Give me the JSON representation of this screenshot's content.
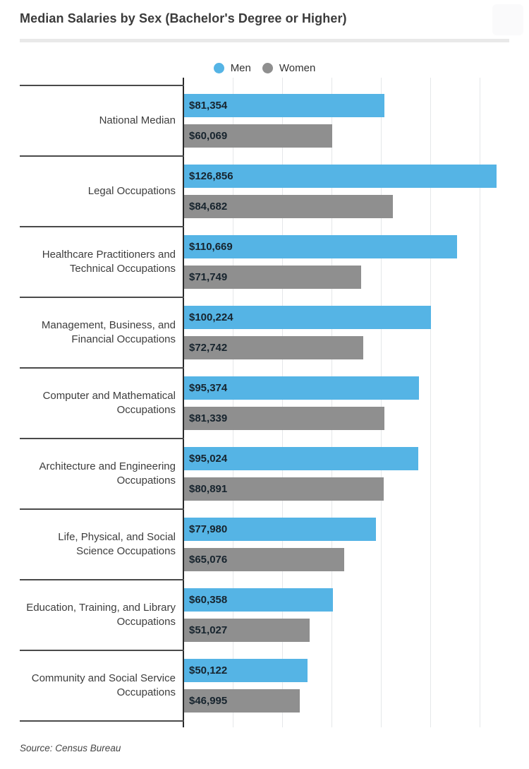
{
  "page": {
    "title": "Median Salaries by Sex (Bachelor's Degree or Higher)",
    "source": "Source: Census Bureau"
  },
  "legend": {
    "men_label": "Men",
    "women_label": "Women"
  },
  "colors": {
    "men": "#55b4e5",
    "women": "#8f8f8f",
    "value_text": "#17242e",
    "axis": "#2a2a2a",
    "row_line": "#4a4a4a",
    "grid": "#e5e7e9",
    "title_text": "#3b3b3b"
  },
  "chart_data": {
    "type": "bar",
    "orientation": "horizontal",
    "title": "Median Salaries by Sex (Bachelor's Degree or Higher)",
    "xlabel": "",
    "ylabel": "",
    "xlim": [
      0,
      140000
    ],
    "gridline_step": 20000,
    "grid": true,
    "legend_position": "top",
    "source": "Source: Census Bureau",
    "categories": [
      "National Median",
      "Legal Occupations",
      "Healthcare Practitioners and Technical Occupations",
      "Management, Business, and Financial Occupations",
      "Computer and Mathematical Occupations",
      "Architecture and Engineering Occupations",
      "Life, Physical, and Social Science Occupations",
      "Education, Training, and Library Occupations",
      "Community and Social Service Occupations"
    ],
    "series": [
      {
        "name": "Men",
        "color": "#55b4e5",
        "values": [
          81354,
          126856,
          110669,
          100224,
          95374,
          95024,
          77980,
          60358,
          50122
        ],
        "labels": [
          "$81,354",
          "$126,856",
          "$110,669",
          "$100,224",
          "$95,374",
          "$95,024",
          "$77,980",
          "$60,358",
          "$50,122"
        ]
      },
      {
        "name": "Women",
        "color": "#8f8f8f",
        "values": [
          60069,
          84682,
          71749,
          72742,
          81339,
          80891,
          65076,
          51027,
          46995
        ],
        "labels": [
          "$60,069",
          "$84,682",
          "$71,749",
          "$72,742",
          "$81,339",
          "$80,891",
          "$65,076",
          "$51,027",
          "$46,995"
        ]
      }
    ]
  }
}
